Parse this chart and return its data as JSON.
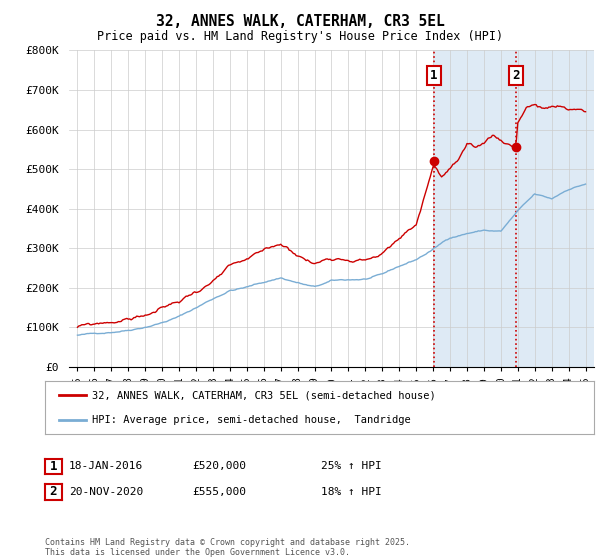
{
  "title": "32, ANNES WALK, CATERHAM, CR3 5EL",
  "subtitle": "Price paid vs. HM Land Registry's House Price Index (HPI)",
  "legend_line1": "32, ANNES WALK, CATERHAM, CR3 5EL (semi-detached house)",
  "legend_line2": "HPI: Average price, semi-detached house,  Tandridge",
  "footer": "Contains HM Land Registry data © Crown copyright and database right 2025.\nThis data is licensed under the Open Government Licence v3.0.",
  "annotation1_label": "1",
  "annotation1_date": "18-JAN-2016",
  "annotation1_price": "£520,000",
  "annotation1_hpi": "25% ↑ HPI",
  "annotation2_label": "2",
  "annotation2_date": "20-NOV-2020",
  "annotation2_price": "£555,000",
  "annotation2_hpi": "18% ↑ HPI",
  "price_color": "#cc0000",
  "hpi_color": "#7aadd4",
  "background_color": "#ffffff",
  "plot_bg_color": "#ffffff",
  "highlight_bg": "#deeaf5",
  "ylim": [
    0,
    800000
  ],
  "yticks": [
    0,
    100000,
    200000,
    300000,
    400000,
    500000,
    600000,
    700000,
    800000
  ],
  "ytick_labels": [
    "£0",
    "£100K",
    "£200K",
    "£300K",
    "£400K",
    "£500K",
    "£600K",
    "£700K",
    "£800K"
  ],
  "sale1_x": 2016.04,
  "sale1_y": 520000,
  "sale2_x": 2020.88,
  "sale2_y": 555000,
  "vline1_x": 2016.04,
  "vline2_x": 2020.88,
  "xmin": 1994.5,
  "xmax": 2025.5,
  "xticks": [
    1995,
    1996,
    1997,
    1998,
    1999,
    2000,
    2001,
    2002,
    2003,
    2004,
    2005,
    2006,
    2007,
    2008,
    2009,
    2010,
    2011,
    2012,
    2013,
    2014,
    2015,
    2016,
    2017,
    2018,
    2019,
    2020,
    2021,
    2022,
    2023,
    2024,
    2025
  ],
  "grid_color": "#cccccc",
  "noise_seed_hpi": 42,
  "noise_seed_price": 99
}
